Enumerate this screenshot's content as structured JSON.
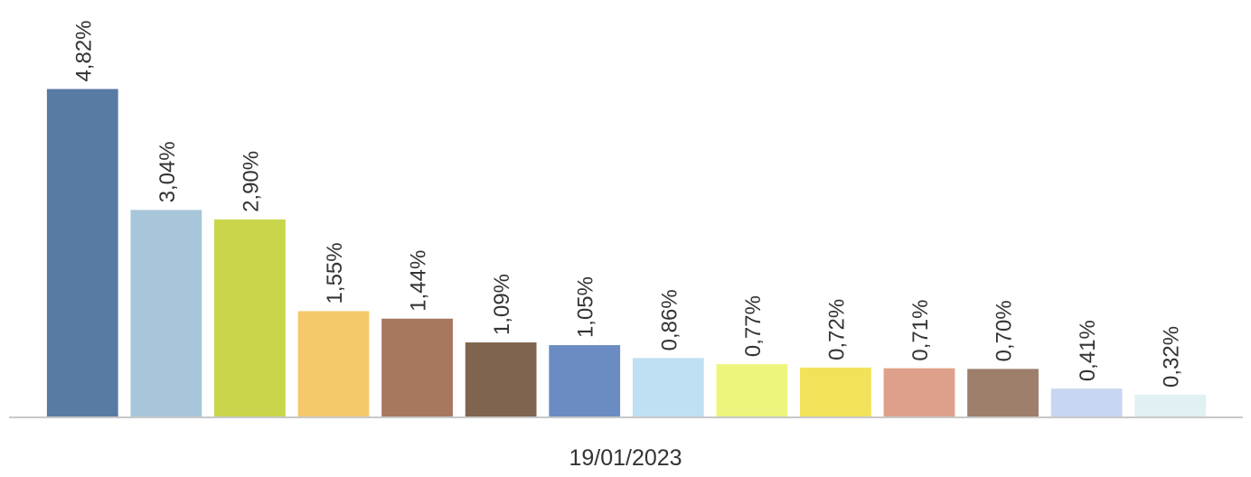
{
  "chart_data": {
    "type": "bar",
    "values": [
      4.82,
      3.04,
      2.9,
      1.55,
      1.44,
      1.09,
      1.05,
      0.86,
      0.77,
      0.72,
      0.71,
      0.7,
      0.41,
      0.32
    ],
    "value_labels": [
      "4,82%",
      "3,04%",
      "2,90%",
      "1,55%",
      "1,44%",
      "1,09%",
      "1,05%",
      "0,86%",
      "0,77%",
      "0,72%",
      "0,71%",
      "0,70%",
      "0,41%",
      "0,32%"
    ],
    "colors": [
      "#587ba3",
      "#a8c6da",
      "#c9d54a",
      "#f3c96a",
      "#a87760",
      "#7f6550",
      "#6b8cc2",
      "#bfe0f3",
      "#eef57d",
      "#f2e25a",
      "#dea08a",
      "#9d7f6c",
      "#c9d6f2",
      "#e0f0f3"
    ],
    "xlabel": "19/01/2023",
    "ylim": [
      0,
      5
    ]
  }
}
